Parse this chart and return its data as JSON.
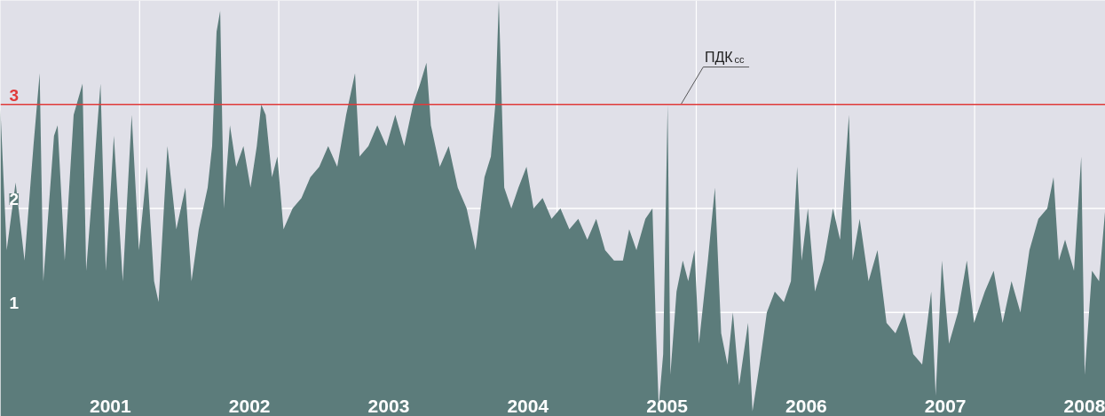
{
  "chart_data": {
    "type": "area",
    "color": "#5c7c7b",
    "xlim": [
      2000.21,
      2008.15
    ],
    "ylim": [
      0,
      4
    ],
    "xticks": [
      2001,
      2002,
      2003,
      2004,
      2005,
      2006,
      2007,
      2008,
      {
        "value": 2001.21,
        "label": null
      },
      {
        "value": 2002.21,
        "label": null
      },
      {
        "value": 2003.21,
        "label": null
      },
      {
        "value": 2004.21,
        "label": null
      },
      {
        "value": 2005.21,
        "label": null
      },
      {
        "value": 2006.21,
        "label": null
      },
      {
        "value": 2007.21,
        "label": null
      }
    ],
    "yticks": [
      1,
      2,
      3
    ],
    "grid": true,
    "ref_lines": [
      {
        "axis": "y",
        "value": 3,
        "label": "ПДК$_{сс}$",
        "color": "#e03a3a"
      }
    ],
    "x": [
      2000.21,
      2000.255,
      2000.319,
      2000.383,
      2000.447,
      2000.492,
      2000.518,
      2000.595,
      2000.621,
      2000.672,
      2000.736,
      2000.8,
      2000.826,
      2000.929,
      2000.967,
      2001.025,
      2001.089,
      2001.153,
      2001.205,
      2001.263,
      2001.314,
      2001.346,
      2001.41,
      2001.474,
      2001.539,
      2001.583,
      2001.635,
      2001.699,
      2001.731,
      2001.763,
      2001.789,
      2001.815,
      2001.859,
      2001.904,
      2001.956,
      2002.007,
      2002.052,
      2002.084,
      2002.116,
      2002.161,
      2002.2,
      2002.244,
      2002.309,
      2002.373,
      2002.437,
      2002.501,
      2002.565,
      2002.63,
      2002.694,
      2002.758,
      2002.79,
      2002.854,
      2002.918,
      2002.983,
      2003.047,
      2003.111,
      2003.175,
      2003.226,
      2003.271,
      2003.303,
      2003.367,
      2003.431,
      2003.496,
      2003.56,
      2003.624,
      2003.688,
      2003.734,
      2003.766,
      2003.791,
      2003.83,
      2003.881,
      2003.932,
      2003.99,
      2004.041,
      2004.106,
      2004.17,
      2004.234,
      2004.298,
      2004.362,
      2004.427,
      2004.491,
      2004.555,
      2004.619,
      2004.683,
      2004.728,
      2004.78,
      2004.844,
      2004.895,
      2004.921,
      2004.94,
      2004.972,
      2005.004,
      2005.024,
      2005.068,
      2005.113,
      2005.152,
      2005.197,
      2005.229,
      2005.293,
      2005.344,
      2005.389,
      2005.434,
      2005.473,
      2005.518,
      2005.582,
      2005.614,
      2005.665,
      2005.717,
      2005.774,
      2005.839,
      2005.89,
      2005.935,
      2005.967,
      2006.012,
      2006.063,
      2006.127,
      2006.192,
      2006.243,
      2006.307,
      2006.333,
      2006.384,
      2006.448,
      2006.512,
      2006.577,
      2006.641,
      2006.705,
      2006.769,
      2006.833,
      2006.898,
      2006.93,
      2006.975,
      2007.026,
      2007.09,
      2007.154,
      2007.206,
      2007.283,
      2007.347,
      2007.411,
      2007.475,
      2007.539,
      2007.604,
      2007.668,
      2007.732,
      2007.777,
      2007.815,
      2007.86,
      2007.924,
      2007.976,
      2008.001,
      2008.053,
      2008.104,
      2008.149
    ],
    "values": [
      2.95,
      1.6,
      2.25,
      1.5,
      2.6,
      3.3,
      1.3,
      2.7,
      2.8,
      1.5,
      2.9,
      3.2,
      1.4,
      3.2,
      1.4,
      2.7,
      1.3,
      2.9,
      1.6,
      2.4,
      1.3,
      1.1,
      2.6,
      1.8,
      2.2,
      1.3,
      1.8,
      2.2,
      2.6,
      3.7,
      3.9,
      2.0,
      2.8,
      2.4,
      2.6,
      2.2,
      2.6,
      3.0,
      2.9,
      2.3,
      2.5,
      1.8,
      2.0,
      2.1,
      2.3,
      2.4,
      2.6,
      2.4,
      2.9,
      3.3,
      2.5,
      2.6,
      2.8,
      2.6,
      2.9,
      2.6,
      3.0,
      3.2,
      3.4,
      2.8,
      2.4,
      2.6,
      2.2,
      2.0,
      1.6,
      2.3,
      2.5,
      3.0,
      4.0,
      2.2,
      2.0,
      2.2,
      2.4,
      2.0,
      2.1,
      1.9,
      2.0,
      1.8,
      1.9,
      1.7,
      1.9,
      1.6,
      1.5,
      1.5,
      1.8,
      1.6,
      1.9,
      2.0,
      0.8,
      0.1,
      0.6,
      3.0,
      0.4,
      1.2,
      1.5,
      1.3,
      1.6,
      0.7,
      1.5,
      2.2,
      0.8,
      0.5,
      1.0,
      0.3,
      0.9,
      0.05,
      0.5,
      1.0,
      1.2,
      1.1,
      1.3,
      2.4,
      1.5,
      2.0,
      1.2,
      1.5,
      2.0,
      1.7,
      2.9,
      1.5,
      1.9,
      1.3,
      1.6,
      0.9,
      0.8,
      1.0,
      0.6,
      0.5,
      1.2,
      0.2,
      1.5,
      0.7,
      1.0,
      1.5,
      0.9,
      1.2,
      1.4,
      0.9,
      1.3,
      1.0,
      1.6,
      1.9,
      2.0,
      2.3,
      1.5,
      1.7,
      1.4,
      2.5,
      0.4,
      1.4,
      1.3,
      2.0
    ]
  }
}
